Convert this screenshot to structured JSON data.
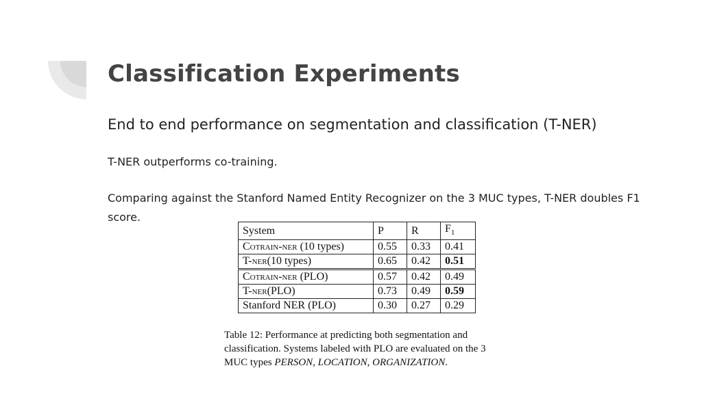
{
  "slide": {
    "title": "Classification Experiments",
    "subtitle": "End to end performance on segmentation and classification (T-NER)",
    "point1": "T-NER outperforms co-training.",
    "point2": "Comparing against the Stanford Named Entity Recognizer on the 3 MUC types, T-NER doubles F1 score."
  },
  "table": {
    "headers": [
      "System",
      "P",
      "R",
      "F"
    ],
    "header_sub": "1",
    "rows": [
      {
        "system": "Cotrain-NER (10 types)",
        "p": "0.55",
        "r": "0.33",
        "f1": "0.41",
        "bold_f1": false
      },
      {
        "system": "T-ner(10 types)",
        "p": "0.65",
        "r": "0.42",
        "f1": "0.51",
        "bold_f1": true
      },
      {
        "system": "Cotrain-NER (PLO)",
        "p": "0.57",
        "r": "0.42",
        "f1": "0.49",
        "bold_f1": false
      },
      {
        "system": "T-ner(PLO)",
        "p": "0.73",
        "r": "0.49",
        "f1": "0.59",
        "bold_f1": true
      },
      {
        "system": "Stanford NER (PLO)",
        "p": "0.30",
        "r": "0.27",
        "f1": "0.29",
        "bold_f1": false
      }
    ]
  },
  "caption": {
    "lead": "Table 12: Performance at predicting both segmentation and classification. Systems labeled with PLO are evaluated on the 3 MUC types ",
    "person": "PERSON",
    "sep1": ", ",
    "location": "LOCATION",
    "sep2": ", ",
    "organization": "ORGANIZATION",
    "end": "."
  },
  "colors": {
    "decor": "#e6e6e6",
    "title": "#444444"
  }
}
